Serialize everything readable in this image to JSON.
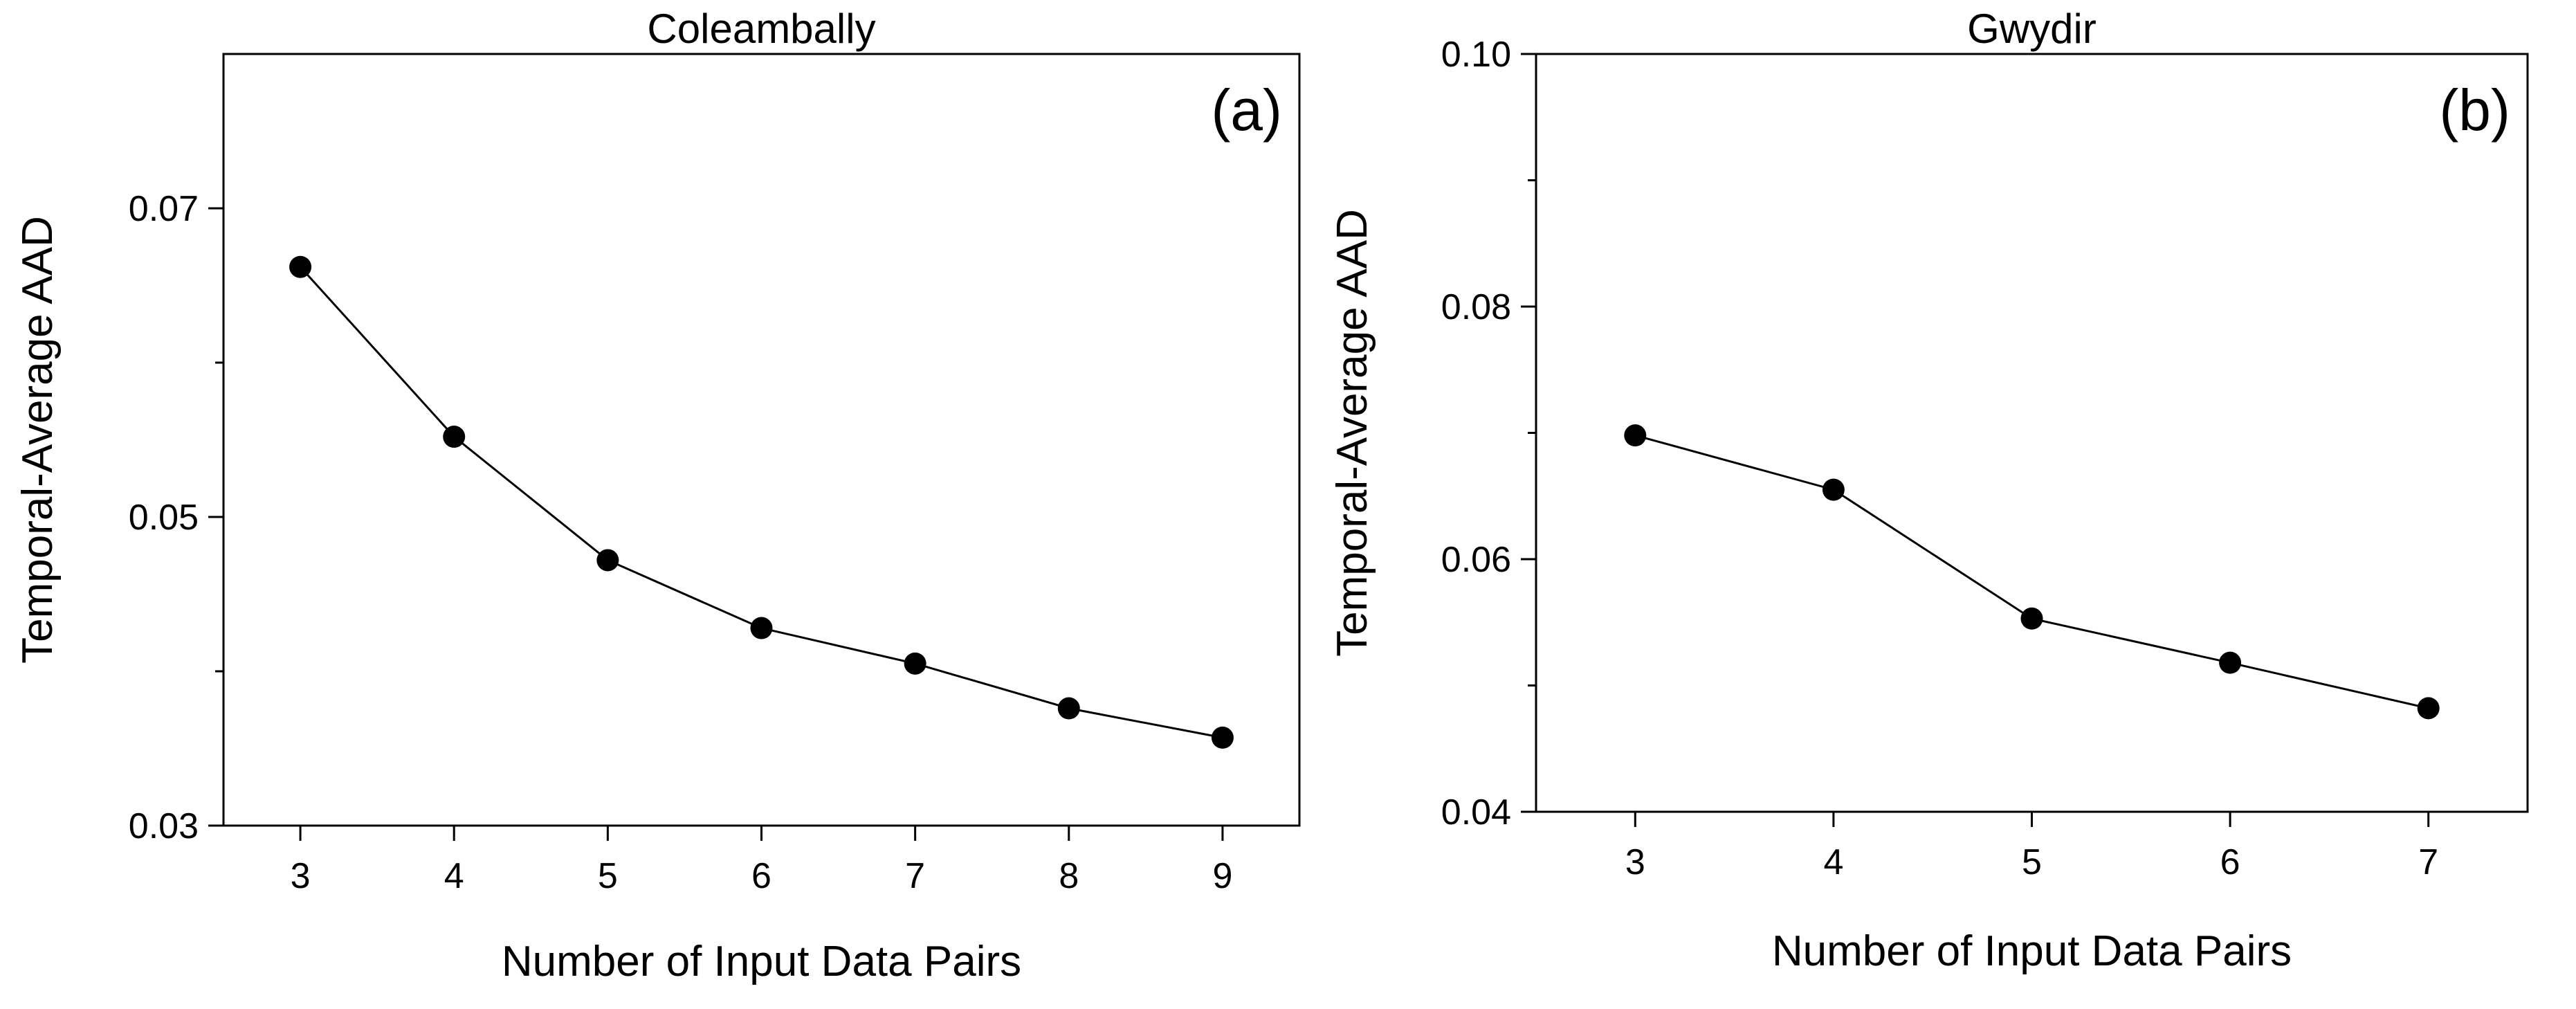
{
  "chart_data": [
    {
      "type": "line",
      "title": "Coleambally",
      "panel_label": "(a)",
      "xlabel": "Number of Input Data Pairs",
      "ylabel": "Temporal-Average AAD",
      "xlim": [
        2.5,
        9.5
      ],
      "ylim": [
        0.03,
        0.08
      ],
      "xticks": [
        3,
        4,
        5,
        6,
        7,
        8,
        9
      ],
      "yticks": [
        0.03,
        0.05,
        0.07
      ],
      "ytick_labels": [
        "0.03",
        "0.05",
        "0.07"
      ],
      "minor_yticks": [
        0.04,
        0.06
      ],
      "x": [
        3,
        4,
        5,
        6,
        7,
        8,
        9
      ],
      "series": [
        {
          "values": [
            0.0662,
            0.0552,
            0.0472,
            0.0428,
            0.0405,
            0.0376,
            0.0357
          ]
        }
      ]
    },
    {
      "type": "line",
      "title": "Gwydir",
      "panel_label": "(b)",
      "xlabel": "Number of Input Data Pairs",
      "ylabel": "Temporal-Average AAD",
      "xlim": [
        2.5,
        7.5
      ],
      "ylim": [
        0.04,
        0.1
      ],
      "xticks": [
        3,
        4,
        5,
        6,
        7
      ],
      "yticks": [
        0.04,
        0.06,
        0.08,
        0.1
      ],
      "ytick_labels": [
        "0.04",
        "0.06",
        "0.08",
        "0.10"
      ],
      "minor_yticks": [
        0.05,
        0.07,
        0.09
      ],
      "x": [
        3,
        4,
        5,
        6,
        7
      ],
      "series": [
        {
          "values": [
            0.0698,
            0.0655,
            0.0553,
            0.0518,
            0.0482
          ]
        }
      ]
    }
  ]
}
